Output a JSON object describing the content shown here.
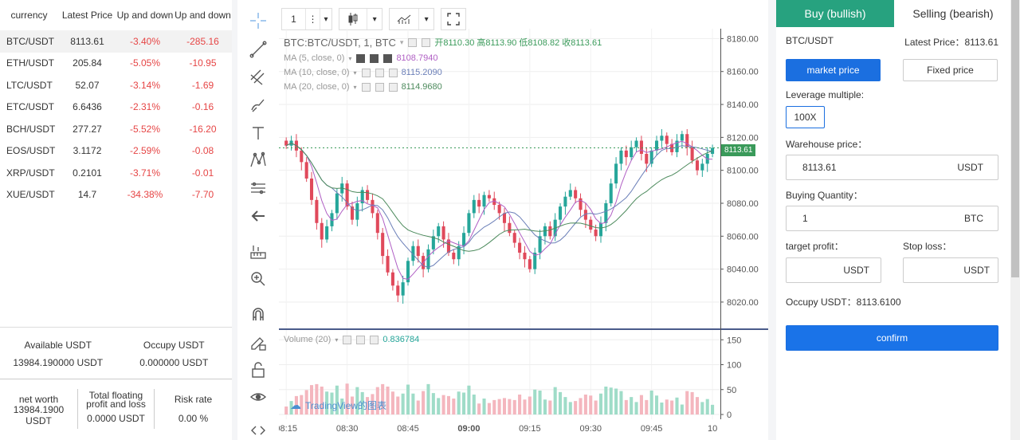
{
  "market": {
    "headers": [
      "currency",
      "Latest Price",
      "Up and down",
      "Up and down"
    ],
    "rows": [
      {
        "currency": "BTC/USDT",
        "price": "8113.61",
        "pct": "-3.40%",
        "amt": "-285.16"
      },
      {
        "currency": "ETH/USDT",
        "price": "205.84",
        "pct": "-5.05%",
        "amt": "-10.95"
      },
      {
        "currency": "LTC/USDT",
        "price": "52.07",
        "pct": "-3.14%",
        "amt": "-1.69"
      },
      {
        "currency": "ETC/USDT",
        "price": "6.6436",
        "pct": "-2.31%",
        "amt": "-0.16"
      },
      {
        "currency": "BCH/USDT",
        "price": "277.27",
        "pct": "-5.52%",
        "amt": "-16.20"
      },
      {
        "currency": "EOS/USDT",
        "price": "3.1172",
        "pct": "-2.59%",
        "amt": "-0.08"
      },
      {
        "currency": "XRP/USDT",
        "price": "0.2101",
        "pct": "-3.71%",
        "amt": "-0.01"
      },
      {
        "currency": "XUE/USDT",
        "price": "14.7",
        "pct": "-34.38%",
        "amt": "-7.70"
      }
    ]
  },
  "balance": {
    "available_label": "Available USDT",
    "available_value": "13984.190000 USDT",
    "occupy_label": "Occupy USDT",
    "occupy_value": "0.000000 USDT"
  },
  "stats": {
    "net_label": "net worth",
    "net_value": "13984.1900 USDT",
    "float_label": "Total floating profit and loss",
    "float_value": "0.0000 USDT",
    "risk_label": "Risk rate",
    "risk_value": "0.00 %"
  },
  "toolbar": {
    "interval": "1",
    "more": "⋮",
    "dropdown": "▾"
  },
  "chart_legend": {
    "symbol": "BTC:BTC/USDT, 1, BTC",
    "open_label": "开",
    "open": "8110.30",
    "high_label": "高",
    "high": "8113.90",
    "low_label": "低",
    "low": "8108.82",
    "close_label": "收",
    "close": "8113.61",
    "ma5_label": "MA (5, close, 0)",
    "ma5_value": "8108.7940",
    "ma10_label": "MA (10, close, 0)",
    "ma10_value": "8115.2090",
    "ma20_label": "MA (20, close, 0)",
    "ma20_value": "8114.9680",
    "volume_label": "Volume (20)",
    "volume_value": "0.836784",
    "watermark": "TradingView的图表",
    "last_price_tag": "8113.61"
  },
  "chart_data": {
    "type": "candlestick",
    "price_axis_ticks": [
      "8180.00",
      "8160.00",
      "8140.00",
      "8120.00",
      "8100.00",
      "8080.00",
      "8060.00",
      "8040.00",
      "8020.00"
    ],
    "price_ylim": [
      8004,
      8186
    ],
    "volume_axis_ticks": [
      "150",
      "100",
      "50",
      "0"
    ],
    "volume_ylim": [
      0,
      160
    ],
    "time_ticks": [
      "08:15",
      "08:30",
      "08:45",
      "09:00",
      "09:15",
      "09:30",
      "09:45",
      "10"
    ],
    "close_series": [
      8115,
      8118,
      8112,
      8105,
      8095,
      8082,
      8068,
      8058,
      8066,
      8074,
      8086,
      8092,
      8078,
      8070,
      8080,
      8088,
      8082,
      8074,
      8062,
      8048,
      8038,
      8030,
      8024,
      8032,
      8045,
      8054,
      8048,
      8040,
      8052,
      8060,
      8066,
      8058,
      8050,
      8046,
      8054,
      8062,
      8074,
      8082,
      8078,
      8085,
      8083,
      8079,
      8074,
      8068,
      8062,
      8056,
      8050,
      8046,
      8040,
      8050,
      8060,
      8066,
      8060,
      8070,
      8078,
      8084,
      8088,
      8083,
      8076,
      8070,
      8064,
      8060,
      8068,
      8080,
      8092,
      8104,
      8112,
      8108,
      8114,
      8118,
      8110,
      8104,
      8112,
      8118,
      8121,
      8116,
      8111,
      8118,
      8122,
      8114,
      8106,
      8100,
      8104,
      8110,
      8113.61
    ],
    "ma5_last": 8108.794,
    "ma10_last": 8115.209,
    "ma20_last": 8114.968
  },
  "order": {
    "tab_buy": "Buy (bullish)",
    "tab_sell": "Selling (bearish)",
    "pair": "BTC/USDT",
    "latest_price_label": "Latest Price：8113.61",
    "market_price_btn": "market price",
    "fixed_price_btn": "Fixed price",
    "leverage_label": "Leverage multiple:",
    "leverage_value": "100X",
    "warehouse_label": "Warehouse price：",
    "warehouse_value": "8113.61",
    "warehouse_unit": "USDT",
    "qty_label": "Buying Quantity：",
    "qty_value": "1",
    "qty_unit": "BTC",
    "target_label": "target profit：",
    "target_unit": "USDT",
    "stop_label": "Stop loss：",
    "stop_unit": "USDT",
    "occupy_label": "Occupy USDT：8113.6100",
    "confirm_btn": "confirm"
  },
  "colors": {
    "up": "#26a69a",
    "down": "#e0495b",
    "accent": "#1b6fe0",
    "tab": "#27a27f"
  }
}
